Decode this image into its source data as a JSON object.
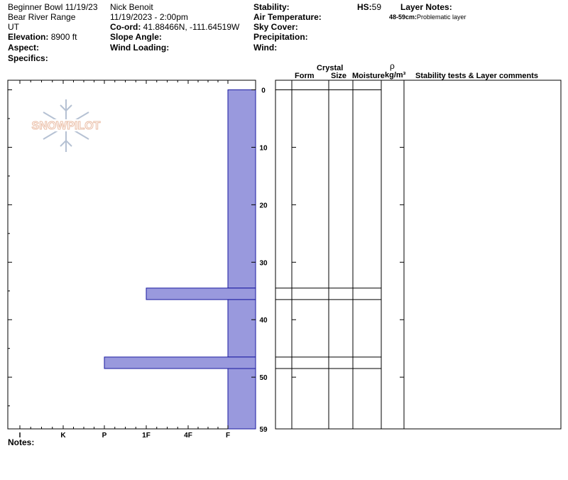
{
  "site": {
    "name_date": "Beginner Bowl 11/19/23",
    "range": "Bear River Range",
    "state": "UT",
    "elevation_label": "Elevation:",
    "elevation_value": "8900 ft",
    "aspect_label": "Aspect:",
    "specifics_label": "Specifics:"
  },
  "observer": {
    "name": "Nick Benoit",
    "datetime": "11/19/2023 - 2:00pm",
    "coord_label": "Co-ord:",
    "coord_value": "41.88466N, -111.64519W",
    "slope_label": "Slope Angle:",
    "wind_loading_label": "Wind Loading:"
  },
  "conditions": {
    "stability_label": "Stability:",
    "air_temp_label": "Air Temperature:",
    "sky_label": "Sky Cover:",
    "precip_label": "Precipitation:",
    "wind_label": "Wind:"
  },
  "hs": {
    "label": "HS:",
    "value": "59"
  },
  "layer_notes": {
    "label": "Layer Notes:",
    "range": "48-59cm:",
    "text": "Problematic layer"
  },
  "logo": {
    "text": "SNOWPILOT"
  },
  "notes_label": "Notes:",
  "table_headers": {
    "crystal": "Crystal",
    "form": "Form",
    "size": "Size",
    "moisture": "Moisture",
    "rho": "ρ",
    "density_unit": "kg/m³",
    "comments": "Stability tests & Layer comments"
  },
  "colors": {
    "bar_fill": "#9999dd",
    "bar_stroke": "#1a1aa0"
  },
  "chart_data": {
    "type": "bar",
    "orientation": "horizontal",
    "title": "",
    "xlabel": "",
    "ylabel": "",
    "depth_range_cm": [
      0,
      59
    ],
    "depth_ticks": [
      "0",
      "10",
      "20",
      "30",
      "40",
      "50",
      "59"
    ],
    "hardness_categories": [
      "I",
      "K",
      "P",
      "1F",
      "4F",
      "F"
    ],
    "layers": [
      {
        "top_cm": 0,
        "bottom_cm": 34.5,
        "hardness": "F"
      },
      {
        "top_cm": 34.5,
        "bottom_cm": 36.5,
        "hardness": "1F"
      },
      {
        "top_cm": 36.5,
        "bottom_cm": 46.5,
        "hardness": "F"
      },
      {
        "top_cm": 46.5,
        "bottom_cm": 48.5,
        "hardness": "P"
      },
      {
        "top_cm": 48.5,
        "bottom_cm": 59,
        "hardness": "F"
      }
    ],
    "layer_boundaries_cm": [
      34.5,
      36.5,
      46.5,
      48.5
    ]
  }
}
